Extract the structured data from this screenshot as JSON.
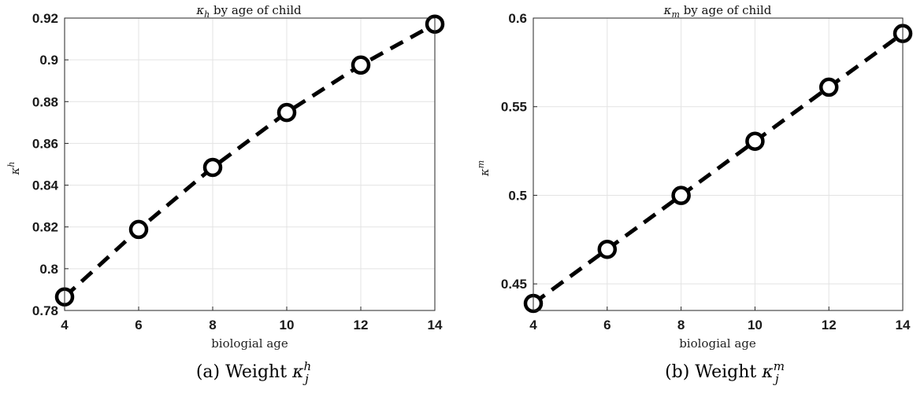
{
  "chart_data": [
    {
      "type": "line",
      "title_symbol": "κ",
      "title_subscript": "h",
      "title_rest": " by age of child",
      "xlabel": "biologial age",
      "ylabel_symbol": "κ",
      "ylabel_superscript": "h",
      "caption_prefix": "(a) Weight ",
      "caption_symbol": "κ",
      "caption_sub": "j",
      "caption_sup": "h",
      "x": [
        4,
        6,
        8,
        10,
        12,
        14
      ],
      "series": [
        {
          "values": [
            0.7865,
            0.8188,
            0.8485,
            0.8748,
            0.8975,
            0.9171
          ]
        }
      ],
      "xlim": [
        4,
        14
      ],
      "ylim": [
        0.78,
        0.92
      ],
      "xticks": [
        "4",
        "6",
        "8",
        "10",
        "12",
        "14"
      ],
      "yticks": [
        "0.78",
        "0.8",
        "0.82",
        "0.84",
        "0.86",
        "0.88",
        "0.9",
        "0.92"
      ],
      "grid": true,
      "line_style": "dashed",
      "marker": "circle",
      "color": "#000000"
    },
    {
      "type": "line",
      "title_symbol": "κ",
      "title_subscript": "m",
      "title_rest": " by age of child",
      "xlabel": "biologial age",
      "ylabel_symbol": "κ",
      "ylabel_superscript": "m",
      "caption_prefix": "(b) Weight ",
      "caption_symbol": "κ",
      "caption_sub": "j",
      "caption_sup": "m",
      "x": [
        4,
        6,
        8,
        10,
        12,
        14
      ],
      "series": [
        {
          "values": [
            0.439,
            0.4695,
            0.4999,
            0.5305,
            0.561,
            0.5913
          ]
        }
      ],
      "xlim": [
        4,
        14
      ],
      "ylim": [
        0.435,
        0.6
      ],
      "xticks": [
        "4",
        "6",
        "8",
        "10",
        "12",
        "14"
      ],
      "yticks": [
        "0.45",
        "0.5",
        "0.55",
        "0.6"
      ],
      "grid": true,
      "line_style": "dashed",
      "marker": "circle",
      "color": "#000000"
    }
  ]
}
